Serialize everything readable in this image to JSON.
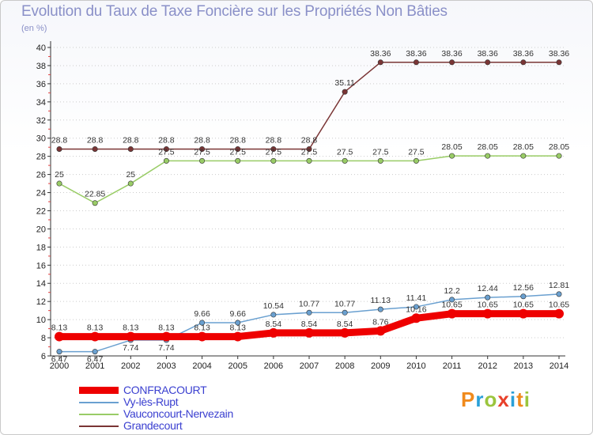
{
  "title": "Evolution du Taux de Taxe Foncière sur les Propriétés Non Bâties",
  "unit": "(en %)",
  "logo": {
    "text": "Proxiti",
    "colors": [
      "#f08a1c",
      "#2aa0d8",
      "#9bc53d",
      "#e8402a",
      "#2aa0d8",
      "#f08a1c",
      "#9bc53d"
    ]
  },
  "chart_data": {
    "type": "line",
    "title": "Evolution du Taux de Taxe Foncière sur les Propriétés Non Bâties",
    "ylabel": "(en %)",
    "x": [
      2000,
      2001,
      2002,
      2003,
      2004,
      2005,
      2006,
      2007,
      2008,
      2009,
      2010,
      2011,
      2012,
      2013,
      2014
    ],
    "ylim": [
      6,
      40
    ],
    "yticks": [
      6,
      8,
      10,
      12,
      14,
      16,
      18,
      20,
      22,
      24,
      26,
      28,
      30,
      32,
      34,
      36,
      38,
      40
    ],
    "series": [
      {
        "name": "CONFRACOURT",
        "color": "#ee0000",
        "width": 9,
        "values": [
          8.13,
          8.13,
          8.13,
          8.13,
          8.13,
          8.13,
          8.54,
          8.54,
          8.54,
          8.76,
          10.16,
          10.65,
          10.65,
          10.65,
          10.65
        ],
        "labels": [
          "8.13",
          "8.13",
          "8.13",
          "8.13",
          "8.13",
          "8.13",
          "8.54",
          "8.54",
          "8.54",
          "8.76",
          "10.16",
          "10.65",
          "10.65",
          "10.65",
          "10.65"
        ]
      },
      {
        "name": "Vy-lès-Rupt",
        "color": "#6aa0d0",
        "width": 1.5,
        "values": [
          6.47,
          6.47,
          7.74,
          7.74,
          9.66,
          9.66,
          10.54,
          10.77,
          10.77,
          11.13,
          11.41,
          12.2,
          12.44,
          12.56,
          12.81
        ],
        "labels": [
          "6.47",
          "6.47",
          "7.74",
          "7.74",
          "9.66",
          "9.66",
          "10.54",
          "10.77",
          "10.77",
          "11.13",
          "11.41",
          "12.2",
          "12.44",
          "12.56",
          "12.81"
        ]
      },
      {
        "name": "Vauconcourt-Nervezain",
        "color": "#99cc66",
        "width": 1.5,
        "values": [
          25,
          22.85,
          25,
          27.5,
          27.5,
          27.5,
          27.5,
          27.5,
          27.5,
          27.5,
          27.5,
          28.05,
          28.05,
          28.05,
          28.05
        ],
        "labels": [
          "25",
          "22.85",
          "25",
          "27.5",
          "27.5",
          "27.5",
          "27.5",
          "27.5",
          "27.5",
          "27.5",
          "27.5",
          "28.05",
          "28.05",
          "28.05",
          "28.05"
        ]
      },
      {
        "name": "Grandecourt",
        "color": "#7a3535",
        "width": 1.5,
        "values": [
          28.8,
          28.8,
          28.8,
          28.8,
          28.8,
          28.8,
          28.8,
          28.8,
          35.11,
          38.36,
          38.36,
          38.36,
          38.36,
          38.36,
          38.36
        ],
        "labels": [
          "28.8",
          "28.8",
          "28.8",
          "28.8",
          "28.8",
          "28.8",
          "28.8",
          "28.8",
          "35.11",
          "38.36",
          "38.36",
          "38.36",
          "38.36",
          "38.36",
          "38.36"
        ]
      }
    ]
  }
}
